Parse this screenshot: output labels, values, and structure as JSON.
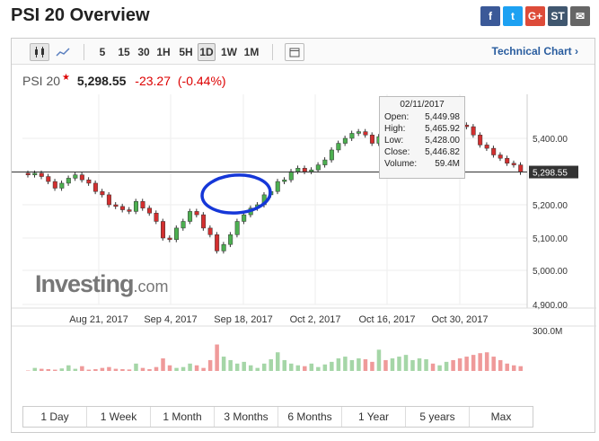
{
  "title": "PSI 20 Overview",
  "share": [
    {
      "name": "facebook-icon",
      "glyph": "f",
      "color": "#3b5998"
    },
    {
      "name": "twitter-icon",
      "glyph": "t",
      "color": "#1da1f2"
    },
    {
      "name": "google-plus-icon",
      "glyph": "G+",
      "color": "#dd4b39"
    },
    {
      "name": "stocktwits-icon",
      "glyph": "ST",
      "color": "#40576f"
    },
    {
      "name": "email-icon",
      "glyph": "✉",
      "color": "#666666"
    }
  ],
  "toolbar": {
    "intervals": [
      "5",
      "15",
      "30",
      "1H",
      "5H",
      "1D",
      "1W",
      "1M"
    ],
    "active_interval": "1D",
    "technical_chart": "Technical Chart"
  },
  "quote": {
    "name": "PSI 20",
    "last": "5,298.55",
    "change": "-23.27",
    "change_pct": "(-0.44%)"
  },
  "tooltip": {
    "date": "02/11/2017",
    "open_label": "Open:",
    "open": "5,449.98",
    "high_label": "High:",
    "high": "5,465.92",
    "low_label": "Low:",
    "low": "5,428.00",
    "close_label": "Close:",
    "close": "5,446.82",
    "volume_label": "Volume:",
    "volume": "59.4M"
  },
  "logo": {
    "main": "Investing",
    "suffix": ".com"
  },
  "periods": [
    "1 Day",
    "1 Week",
    "1 Month",
    "3 Months",
    "6 Months",
    "1 Year",
    "5 years",
    "Max"
  ],
  "chart_data": {
    "type": "candlestick",
    "x_tick_labels": [
      "Aug 21, 2017",
      "Sep 4, 2017",
      "Sep 18, 2017",
      "Oct 2, 2017",
      "Oct 16, 2017",
      "Oct 30, 2017"
    ],
    "y_tick_labels": [
      "5,400.00",
      "5,200.00",
      "5,100.00",
      "5,000.00",
      "4,900.00"
    ],
    "ylim": [
      4900,
      5450
    ],
    "current_price_label": "5,298.55",
    "current_price": 5298.55,
    "volume_tick_labels": [
      "300.0M",
      "0"
    ],
    "close": [
      5290,
      5295,
      5285,
      5270,
      5250,
      5265,
      5280,
      5290,
      5275,
      5265,
      5240,
      5230,
      5200,
      5195,
      5185,
      5180,
      5210,
      5190,
      5175,
      5150,
      5100,
      5095,
      5130,
      5150,
      5180,
      5170,
      5130,
      5110,
      5060,
      5080,
      5110,
      5150,
      5170,
      5190,
      5200,
      5230,
      5240,
      5270,
      5275,
      5300,
      5310,
      5300,
      5305,
      5320,
      5335,
      5365,
      5385,
      5400,
      5415,
      5420,
      5410,
      5385,
      5405,
      5380,
      5395,
      5400,
      5415,
      5425,
      5435,
      5450,
      5440,
      5447,
      5470,
      5455,
      5440,
      5435,
      5410,
      5380,
      5370,
      5350,
      5340,
      5325,
      5320,
      5298
    ],
    "volume": [
      80,
      95,
      90,
      88,
      85,
      92,
      110,
      90,
      105,
      85,
      88,
      95,
      100,
      90,
      88,
      86,
      120,
      95,
      88,
      100,
      150,
      110,
      95,
      100,
      120,
      110,
      95,
      140,
      230,
      160,
      140,
      120,
      130,
      110,
      95,
      120,
      145,
      185,
      140,
      120,
      110,
      105,
      120,
      100,
      115,
      130,
      150,
      160,
      140,
      150,
      145,
      130,
      200,
      140,
      150,
      160,
      170,
      140,
      150,
      145,
      120,
      110,
      130,
      140,
      150,
      160,
      170,
      180,
      185,
      160,
      140,
      120,
      110,
      105
    ],
    "annotation": "hand-drawn circle"
  }
}
